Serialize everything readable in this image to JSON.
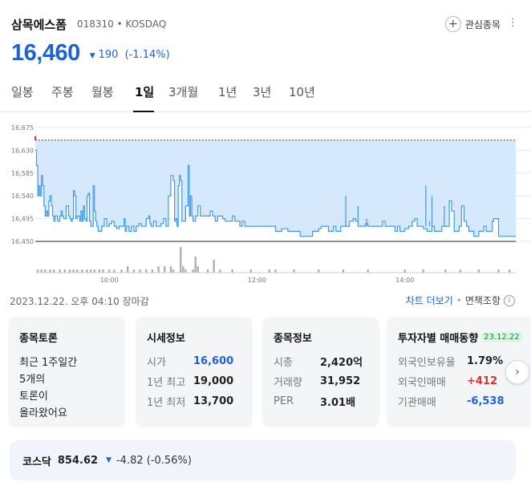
{
  "stock": {
    "name": "삼목에스폼",
    "code": "018310",
    "market": "KOSDAQ",
    "code_market": "018310 • KOSDAQ",
    "favorite_label": "관심종목",
    "price": "16,460",
    "change": "190",
    "change_pct": "(-1.14%)"
  },
  "tabs": [
    "일봉",
    "주봉",
    "월봉",
    "1일",
    "3개월",
    "1년",
    "3년",
    "10년"
  ],
  "active_tab": "1일",
  "timestamp": "2023.12.22. 오후 04:10 장마감",
  "links": {
    "chart_more": "차트 더보기",
    "search": "면책조항"
  },
  "cards": {
    "talk": {
      "title": "종목토론",
      "lines": [
        "최근 1주일간",
        "5개의",
        "토론이",
        "올라왔어요"
      ]
    },
    "market_info": {
      "title": "시세정보",
      "rows": [
        {
          "k": "시가",
          "v": "16,600"
        },
        {
          "k": "1년 최고",
          "v": "19,000"
        },
        {
          "k": "1년 최저",
          "v": "13,700"
        }
      ]
    },
    "stock_info": {
      "title": "종목정보",
      "rows": [
        {
          "k": "시총",
          "v": "2,420억"
        },
        {
          "k": "거래량",
          "v": "31,952"
        },
        {
          "k": "PER",
          "v": "3.01배"
        }
      ]
    },
    "investor": {
      "title": "투자자별 매매동향",
      "badge": "23.12.22",
      "rows": [
        {
          "k": "외국인보유율",
          "v": "1.79%"
        },
        {
          "k": "외국인매매",
          "v": "+412"
        },
        {
          "k": "기관매매",
          "v": "-6,538"
        }
      ]
    }
  },
  "index": {
    "name": "코스닥",
    "value": "854.62",
    "change": "-4.82 (-0.56%)"
  },
  "colors": {
    "accent_blue": "#1e63d6",
    "up_red": "#e03030",
    "fill": "#d6e8fc",
    "line": "#3f9be8"
  },
  "chart_data": {
    "type": "area",
    "y_ticks": [
      "16,675",
      "16,630",
      "16,585",
      "16,540",
      "16,495",
      "16,450"
    ],
    "y_range": [
      16450,
      16675
    ],
    "x_ticks": [
      "10:00",
      "12:00",
      "14:00"
    ],
    "x_tick_minutes": [
      60,
      180,
      300
    ],
    "x_range_minutes": [
      0,
      390
    ],
    "prev_close": 16650,
    "price_series": [
      [
        0,
        16630
      ],
      [
        1,
        16600
      ],
      [
        2,
        16540
      ],
      [
        3,
        16560
      ],
      [
        4,
        16540
      ],
      [
        5,
        16580
      ],
      [
        6,
        16560
      ],
      [
        7,
        16520
      ],
      [
        8,
        16500
      ],
      [
        9,
        16510
      ],
      [
        10,
        16500
      ],
      [
        11,
        16530
      ],
      [
        12,
        16540
      ],
      [
        13,
        16520
      ],
      [
        14,
        16500
      ],
      [
        15,
        16490
      ],
      [
        16,
        16500
      ],
      [
        17,
        16500
      ],
      [
        18,
        16490
      ],
      [
        19,
        16490
      ],
      [
        20,
        16500
      ],
      [
        21,
        16510
      ],
      [
        22,
        16500
      ],
      [
        23,
        16495
      ],
      [
        25,
        16520
      ],
      [
        26,
        16520
      ],
      [
        27,
        16500
      ],
      [
        28,
        16495
      ],
      [
        29,
        16490
      ],
      [
        30,
        16495
      ],
      [
        31,
        16550
      ],
      [
        32,
        16540
      ],
      [
        33,
        16495
      ],
      [
        34,
        16500
      ],
      [
        36,
        16490
      ],
      [
        37,
        16510
      ],
      [
        38,
        16490
      ],
      [
        39,
        16520
      ],
      [
        40,
        16495
      ],
      [
        41,
        16490
      ],
      [
        42,
        16540
      ],
      [
        43,
        16545
      ],
      [
        44,
        16490
      ],
      [
        45,
        16480
      ],
      [
        47,
        16560
      ],
      [
        48,
        16510
      ],
      [
        49,
        16490
      ],
      [
        50,
        16480
      ],
      [
        51,
        16470
      ],
      [
        52,
        16470
      ],
      [
        54,
        16480
      ],
      [
        56,
        16495
      ],
      [
        58,
        16480
      ],
      [
        60,
        16485
      ],
      [
        62,
        16490
      ],
      [
        64,
        16480
      ],
      [
        66,
        16475
      ],
      [
        68,
        16480
      ],
      [
        70,
        16480
      ],
      [
        72,
        16495
      ],
      [
        73,
        16470
      ],
      [
        74,
        16480
      ],
      [
        76,
        16470
      ],
      [
        78,
        16480
      ],
      [
        80,
        16470
      ],
      [
        82,
        16480
      ],
      [
        84,
        16485
      ],
      [
        86,
        16480
      ],
      [
        88,
        16480
      ],
      [
        90,
        16495
      ],
      [
        92,
        16500
      ],
      [
        93,
        16485
      ],
      [
        94,
        16480
      ],
      [
        96,
        16490
      ],
      [
        98,
        16480
      ],
      [
        100,
        16480
      ],
      [
        102,
        16485
      ],
      [
        104,
        16495
      ],
      [
        106,
        16480
      ],
      [
        107,
        16480
      ],
      [
        108,
        16540
      ],
      [
        110,
        16580
      ],
      [
        112,
        16570
      ],
      [
        113,
        16490
      ],
      [
        114,
        16495
      ],
      [
        115,
        16480
      ],
      [
        116,
        16560
      ],
      [
        117,
        16580
      ],
      [
        118,
        16570
      ],
      [
        119,
        16490
      ],
      [
        120,
        16490
      ],
      [
        122,
        16520
      ],
      [
        124,
        16600
      ],
      [
        125,
        16500
      ],
      [
        126,
        16540
      ],
      [
        127,
        16500
      ],
      [
        128,
        16490
      ],
      [
        130,
        16500
      ],
      [
        132,
        16520
      ],
      [
        134,
        16500
      ],
      [
        136,
        16500
      ],
      [
        140,
        16500
      ],
      [
        142,
        16510
      ],
      [
        144,
        16500
      ],
      [
        146,
        16490
      ],
      [
        148,
        16500
      ],
      [
        150,
        16500
      ],
      [
        152,
        16495
      ],
      [
        154,
        16490
      ],
      [
        156,
        16490
      ],
      [
        160,
        16500
      ],
      [
        162,
        16490
      ],
      [
        164,
        16490
      ],
      [
        166,
        16480
      ],
      [
        168,
        16490
      ],
      [
        170,
        16480
      ],
      [
        175,
        16480
      ],
      [
        180,
        16480
      ],
      [
        185,
        16480
      ],
      [
        190,
        16480
      ],
      [
        195,
        16470
      ],
      [
        200,
        16475
      ],
      [
        205,
        16470
      ],
      [
        210,
        16470
      ],
      [
        215,
        16460
      ],
      [
        220,
        16460
      ],
      [
        225,
        16470
      ],
      [
        230,
        16475
      ],
      [
        232,
        16480
      ],
      [
        235,
        16480
      ],
      [
        238,
        16470
      ],
      [
        240,
        16470
      ],
      [
        242,
        16480
      ],
      [
        244,
        16470
      ],
      [
        246,
        16470
      ],
      [
        248,
        16480
      ],
      [
        250,
        16480
      ],
      [
        255,
        16490
      ],
      [
        258,
        16495
      ],
      [
        260,
        16490
      ],
      [
        262,
        16480
      ],
      [
        265,
        16480
      ],
      [
        268,
        16485
      ],
      [
        270,
        16480
      ],
      [
        275,
        16480
      ],
      [
        280,
        16480
      ],
      [
        282,
        16490
      ],
      [
        284,
        16480
      ],
      [
        290,
        16480
      ],
      [
        292,
        16470
      ],
      [
        294,
        16480
      ],
      [
        296,
        16470
      ],
      [
        298,
        16470
      ],
      [
        300,
        16475
      ],
      [
        303,
        16480
      ],
      [
        306,
        16490
      ],
      [
        308,
        16495
      ],
      [
        310,
        16480
      ],
      [
        312,
        16480
      ],
      [
        315,
        16475
      ],
      [
        318,
        16470
      ],
      [
        320,
        16470
      ],
      [
        322,
        16480
      ],
      [
        324,
        16470
      ],
      [
        328,
        16470
      ],
      [
        330,
        16480
      ],
      [
        333,
        16480
      ],
      [
        336,
        16530
      ],
      [
        338,
        16510
      ],
      [
        340,
        16470
      ],
      [
        342,
        16470
      ],
      [
        344,
        16480
      ],
      [
        346,
        16520
      ],
      [
        348,
        16490
      ],
      [
        350,
        16480
      ],
      [
        352,
        16470
      ],
      [
        354,
        16470
      ],
      [
        356,
        16460
      ],
      [
        358,
        16460
      ],
      [
        360,
        16470
      ],
      [
        362,
        16470
      ],
      [
        364,
        16480
      ],
      [
        366,
        16470
      ],
      [
        368,
        16470
      ],
      [
        370,
        16470
      ],
      [
        371,
        16490
      ],
      [
        372,
        16495
      ],
      [
        374,
        16495
      ],
      [
        376,
        16460
      ],
      [
        380,
        16460
      ],
      [
        385,
        16460
      ],
      [
        390,
        16460
      ]
    ],
    "spike_points": [
      [
        195,
        16470
      ],
      [
        252,
        16540
      ],
      [
        262,
        16520
      ],
      [
        269,
        16495
      ],
      [
        317,
        16560
      ],
      [
        320,
        16490
      ],
      [
        322,
        16540
      ],
      [
        332,
        16520
      ]
    ],
    "volume_series": [
      [
        2,
        1
      ],
      [
        5,
        1
      ],
      [
        8,
        1
      ],
      [
        12,
        1
      ],
      [
        15,
        1
      ],
      [
        20,
        1
      ],
      [
        24,
        1
      ],
      [
        28,
        1
      ],
      [
        31,
        1
      ],
      [
        34,
        1
      ],
      [
        38,
        1
      ],
      [
        42,
        1
      ],
      [
        45,
        1
      ],
      [
        48,
        1
      ],
      [
        52,
        1
      ],
      [
        55,
        1
      ],
      [
        60,
        1
      ],
      [
        64,
        1
      ],
      [
        70,
        1
      ],
      [
        75,
        2
      ],
      [
        80,
        1
      ],
      [
        85,
        1
      ],
      [
        90,
        1
      ],
      [
        95,
        1
      ],
      [
        100,
        2
      ],
      [
        105,
        2
      ],
      [
        110,
        2
      ],
      [
        112,
        1
      ],
      [
        118,
        8
      ],
      [
        120,
        2
      ],
      [
        122,
        1
      ],
      [
        128,
        1
      ],
      [
        130,
        5
      ],
      [
        132,
        2
      ],
      [
        140,
        1
      ],
      [
        145,
        4
      ],
      [
        150,
        1
      ],
      [
        160,
        1
      ],
      [
        175,
        1
      ],
      [
        190,
        1
      ],
      [
        195,
        1
      ],
      [
        210,
        1
      ],
      [
        230,
        1
      ],
      [
        250,
        1
      ],
      [
        270,
        1
      ],
      [
        300,
        1
      ],
      [
        315,
        1
      ],
      [
        333,
        1
      ],
      [
        345,
        1
      ],
      [
        360,
        1
      ],
      [
        376,
        1
      ],
      [
        385,
        1
      ]
    ]
  }
}
